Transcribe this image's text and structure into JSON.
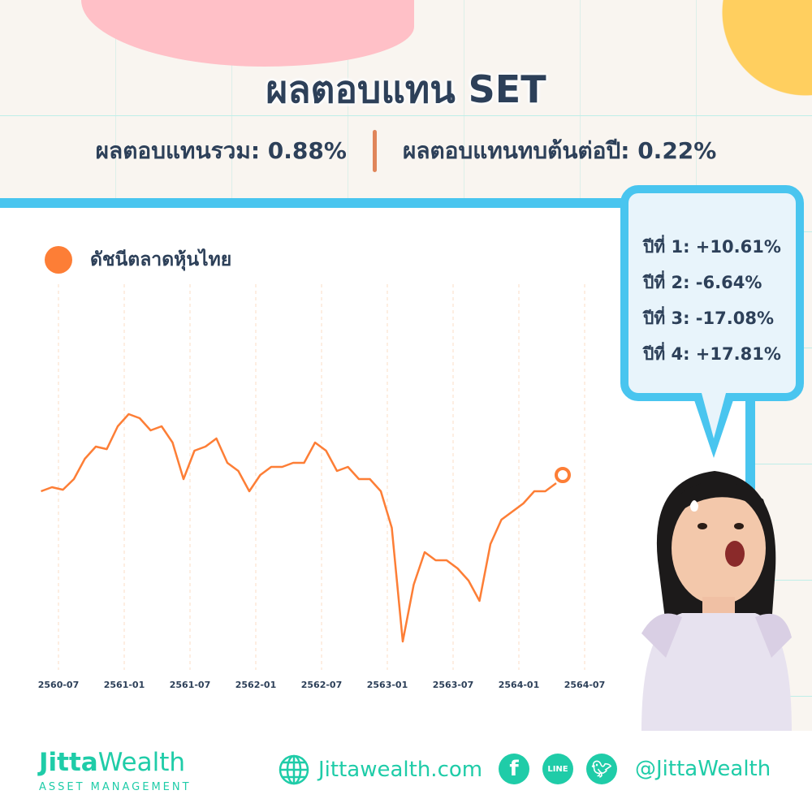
{
  "header": {
    "title": "ผลตอบแทน SET",
    "total_return": "ผลตอบแทนรวม: 0.88%",
    "annualized_return": "ผลตอบแทนทบต้นต่อปี: 0.22%"
  },
  "bubble": {
    "lines": [
      "ปีที่ 1: +10.61%",
      "ปีที่ 2: -6.64%",
      "ปีที่ 3: -17.08%",
      "ปีที่ 4: +17.81%"
    ]
  },
  "colors": {
    "line": "#fd7e36",
    "accent": "#49c5ef",
    "brand": "#1fcca8",
    "text": "#2d4059"
  },
  "chart_data": {
    "type": "line",
    "title": "",
    "xlabel": "",
    "ylabel": "",
    "grid": "vertical dashed",
    "legend_placement": "top-left",
    "x_ticks": [
      "2560-07",
      "2561-01",
      "2561-07",
      "2562-01",
      "2562-07",
      "2563-01",
      "2563-07",
      "2564-01",
      "2564-07"
    ],
    "series": [
      {
        "name": "ดัชนีตลาดหุ้นไทย",
        "x": [
          "2560-06",
          "2560-07",
          "2560-08",
          "2560-09",
          "2560-10",
          "2560-11",
          "2560-12",
          "2561-01",
          "2561-02",
          "2561-03",
          "2561-04",
          "2561-05",
          "2561-06",
          "2561-07",
          "2561-08",
          "2561-09",
          "2561-10",
          "2561-11",
          "2561-12",
          "2562-01",
          "2562-02",
          "2562-03",
          "2562-04",
          "2562-05",
          "2562-06",
          "2562-07",
          "2562-08",
          "2562-09",
          "2562-10",
          "2562-11",
          "2562-12",
          "2563-01",
          "2563-02",
          "2563-03",
          "2563-04",
          "2563-05",
          "2563-06",
          "2563-07",
          "2563-08",
          "2563-09",
          "2563-10",
          "2563-11",
          "2563-12",
          "2564-01",
          "2564-02",
          "2564-03",
          "2564-04",
          "2564-05"
        ],
        "values": [
          1570,
          1583,
          1575,
          1609,
          1674,
          1713,
          1705,
          1778,
          1817,
          1804,
          1765,
          1778,
          1726,
          1609,
          1700,
          1713,
          1739,
          1661,
          1635,
          1570,
          1622,
          1648,
          1648,
          1661,
          1661,
          1726,
          1700,
          1635,
          1648,
          1609,
          1609,
          1570,
          1453,
          1089,
          1271,
          1375,
          1349,
          1349,
          1323,
          1284,
          1219,
          1401,
          1479,
          1505,
          1531,
          1570,
          1570,
          1596
        ]
      }
    ]
  },
  "footer": {
    "logo_bold": "Jitta",
    "logo_light": "Wealth",
    "logo_sub": "ASSET MANAGEMENT",
    "website": "Jittawealth.com",
    "line_label": "LINE",
    "handle": "@JittaWealth"
  }
}
